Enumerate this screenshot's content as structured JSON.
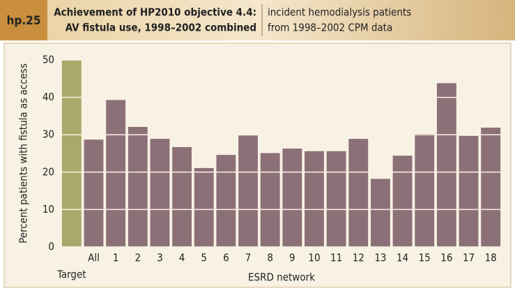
{
  "chart_data": {
    "type": "bar",
    "figure_label": "hp.25",
    "title": [
      "Achievement of HP2010 objective 4.4:",
      "AV fistula use, 1998–2002 combined"
    ],
    "subtitle": [
      "incident hemodialysis patients",
      "from 1998–2002 CPM data"
    ],
    "x_label": "ESRD network",
    "y_label": "Percent patients with fistula as access",
    "categories": [
      "Target",
      "All",
      "1",
      "2",
      "3",
      "4",
      "5",
      "6",
      "7",
      "8",
      "9",
      "10",
      "11",
      "12",
      "13",
      "14",
      "15",
      "16",
      "17",
      "18"
    ],
    "values": [
      50,
      28.7,
      39.3,
      32.1,
      28.9,
      26.7,
      21.1,
      24.6,
      29.8,
      25.1,
      26.3,
      25.6,
      25.6,
      28.9,
      18.2,
      24.4,
      30.2,
      43.8,
      29.7,
      31.9
    ],
    "colors": [
      "#a8aa6a",
      "#8c7077",
      "#8c7077",
      "#8c7077",
      "#8c7077",
      "#8c7077",
      "#8c7077",
      "#8c7077",
      "#8c7077",
      "#8c7077",
      "#8c7077",
      "#8c7077",
      "#8c7077",
      "#8c7077",
      "#8c7077",
      "#8c7077",
      "#8c7077",
      "#8c7077",
      "#8c7077",
      "#8c7077"
    ],
    "ylim": [
      0,
      50
    ],
    "yticks": [
      0,
      10,
      20,
      30,
      40,
      50
    ],
    "grid": true
  }
}
